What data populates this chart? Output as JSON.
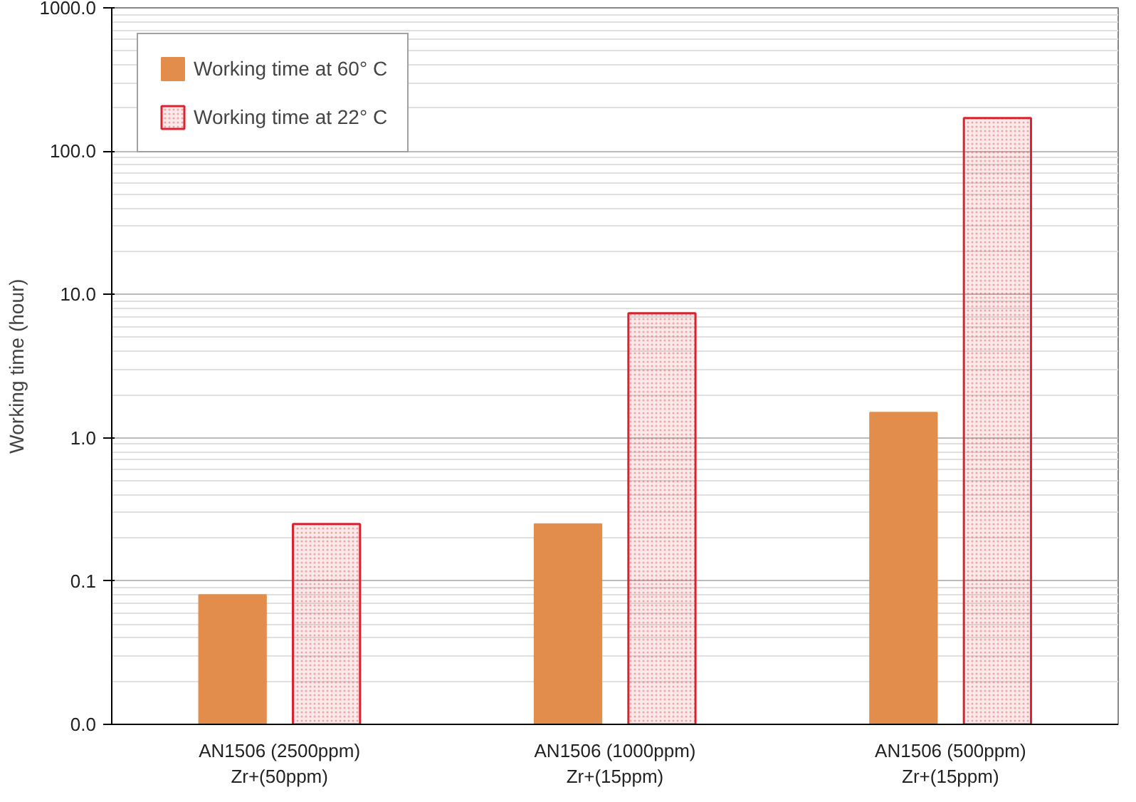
{
  "chart_data": {
    "type": "bar",
    "ylabel": "Working time (hour)",
    "log": "y",
    "categories": [
      "AN1506 (2500ppm)\nZr+(50ppm)",
      "AN1506 (1000ppm)\nZr+(15ppm)",
      "AN1506 (500ppm)\nZr+(15ppm)"
    ],
    "series": [
      {
        "name": "Working time at 60° C",
        "color": "#e38d4c",
        "values": [
          0.08,
          0.25,
          1.5
        ]
      },
      {
        "name": "Working time at 22° C",
        "color": "#d9232e",
        "values": [
          0.25,
          7.4,
          170
        ]
      }
    ],
    "ylim": [
      0.01,
      1000
    ],
    "yticks": [
      {
        "value": 0.01,
        "label": "0.0"
      },
      {
        "value": 0.1,
        "label": "0.1"
      },
      {
        "value": 1,
        "label": "1.0"
      },
      {
        "value": 10,
        "label": "10.0"
      },
      {
        "value": 100,
        "label": "100.0"
      },
      {
        "value": 1000,
        "label": "1000.0"
      }
    ],
    "grid": "y",
    "legend": "top left"
  }
}
